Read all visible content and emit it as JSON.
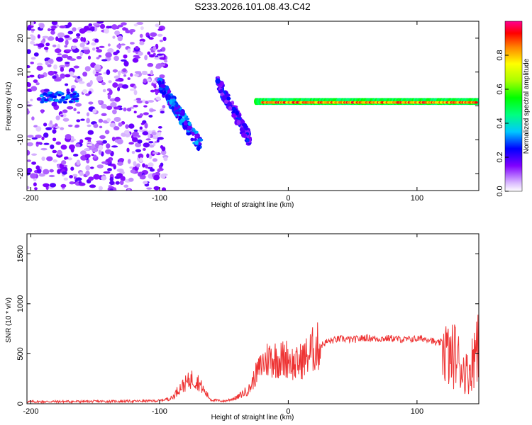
{
  "title": "S233.2026.101.08.43.C42",
  "chart_data": [
    {
      "type": "heatmap",
      "name": "spectrogram",
      "xlabel": "Height of straight line (km)",
      "ylabel": "Frequency (Hz)",
      "xlim": [
        -203,
        148
      ],
      "ylim": [
        -25,
        25
      ],
      "xticks": [
        -200,
        -100,
        0,
        100
      ],
      "yticks": [
        -20,
        -10,
        0,
        10,
        20
      ],
      "colorbar": {
        "label": "Normalized spectral amplitude",
        "range": [
          0,
          1
        ],
        "ticks": [
          0.0,
          0.2,
          0.4,
          0.6,
          0.8
        ]
      },
      "features": [
        {
          "name": "noise-region",
          "x_range": [
            -203,
            -95
          ],
          "freq_range": [
            -25,
            25
          ],
          "amplitude": 0.1
        },
        {
          "name": "streak-1",
          "x_range": [
            -100,
            -68
          ],
          "freq_range": [
            -12,
            7
          ],
          "amplitude": 0.25
        },
        {
          "name": "streak-2",
          "x_range": [
            -55,
            -30
          ],
          "freq_range": [
            -10,
            7
          ],
          "amplitude": 0.2
        },
        {
          "name": "carrier-line",
          "x_range": [
            -25,
            148
          ],
          "freq_range": [
            0,
            2
          ],
          "amplitude": 0.9
        }
      ]
    },
    {
      "type": "line",
      "name": "snr",
      "xlabel": "Height of straight line (km)",
      "ylabel": "SNR (10 * v/v)",
      "xlim": [
        -203,
        148
      ],
      "ylim": [
        0,
        1700
      ],
      "xticks": [
        -200,
        -100,
        0,
        100
      ],
      "yticks": [
        0,
        500,
        1000,
        1500
      ],
      "color": "#ee3333",
      "x": [
        -203,
        -180,
        -160,
        -140,
        -120,
        -100,
        -90,
        -85,
        -80,
        -75,
        -70,
        -65,
        -60,
        -50,
        -40,
        -30,
        -25,
        -20,
        -15,
        -10,
        -5,
        0,
        5,
        10,
        15,
        20,
        25,
        30,
        40,
        50,
        60,
        70,
        80,
        90,
        100,
        110,
        115,
        120,
        125,
        130,
        135,
        140,
        145,
        148
      ],
      "y": [
        20,
        22,
        22,
        24,
        25,
        30,
        60,
        150,
        200,
        250,
        220,
        120,
        40,
        25,
        60,
        150,
        300,
        400,
        460,
        450,
        440,
        460,
        380,
        430,
        480,
        550,
        580,
        620,
        650,
        640,
        660,
        650,
        655,
        640,
        650,
        650,
        600,
        620,
        450,
        500,
        350,
        300,
        500,
        900
      ]
    }
  ]
}
